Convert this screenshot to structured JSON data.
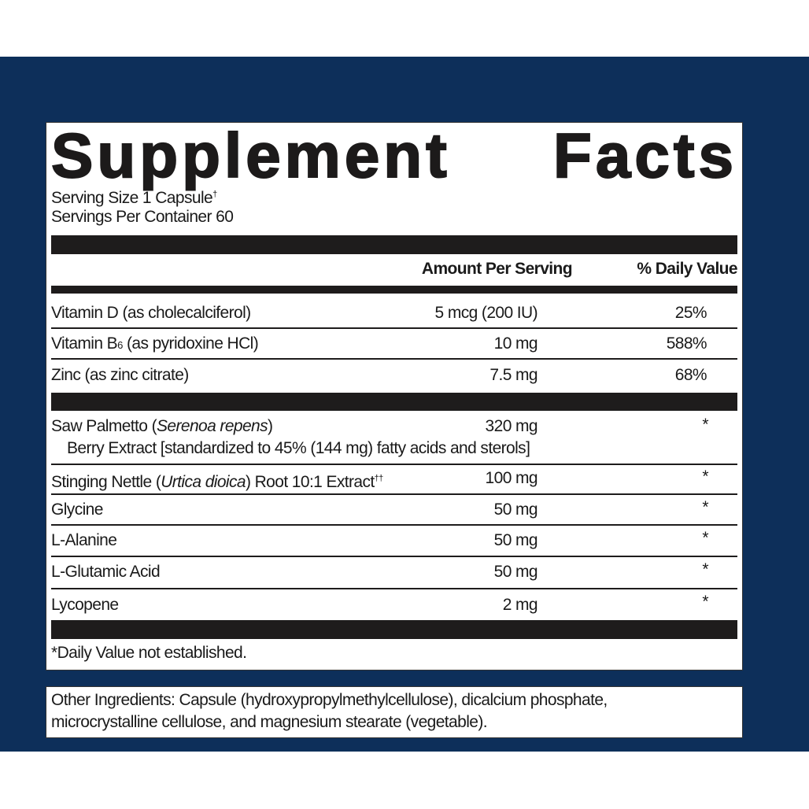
{
  "title_word1": "Supplement",
  "title_word2": "Facts",
  "serving_size": "Serving Size 1 Capsule",
  "serving_size_mark": "†",
  "servings_per_container": "Servings Per Container 60",
  "header": {
    "amount": "Amount Per Serving",
    "dv": "% Daily Value"
  },
  "rows": [
    {
      "name": "Vitamin D (as cholecalciferol)",
      "amount": "5 mcg (200 IU)",
      "dv": "25%"
    },
    {
      "name_a": "Vitamin B",
      "name_sub": "6",
      "name_b": " (as pyridoxine HCl)",
      "amount": "10 mg",
      "dv": "588%"
    },
    {
      "name": "Zinc (as zinc citrate)",
      "amount": "7.5 mg",
      "dv": "68%"
    },
    {
      "name_a": "Saw Palmetto (",
      "name_i": "Serenoa repens",
      "name_b": ")",
      "sub_line": "Berry Extract [standardized to 45% (144 mg) fatty acids and sterols]",
      "amount": "320 mg",
      "dv": "*"
    },
    {
      "name_a": "Stinging Nettle (",
      "name_i": "Urtica dioica",
      "name_b": ") Root 10:1 Extract",
      "name_sup": "††",
      "amount": "100 mg",
      "dv": "*"
    },
    {
      "name": "Glycine",
      "amount": "50 mg",
      "dv": "*"
    },
    {
      "name": "L-Alanine",
      "amount": "50 mg",
      "dv": "*"
    },
    {
      "name": "L-Glutamic Acid",
      "amount": "50 mg",
      "dv": "*"
    },
    {
      "name": "Lycopene",
      "amount": "2 mg",
      "dv": "*"
    }
  ],
  "footnote": "*Daily Value not established.",
  "other_ingredients": {
    "line1": "Other Ingredients: Capsule (hydroxypropylmethylcellulose), dicalcium phosphate,",
    "line2": "microcrystalline cellulose, and magnesium stearate (vegetable)."
  },
  "colors": {
    "background_band": "#0d2f5a",
    "panel": "#ffffff",
    "ink": "#1e1c1c"
  }
}
